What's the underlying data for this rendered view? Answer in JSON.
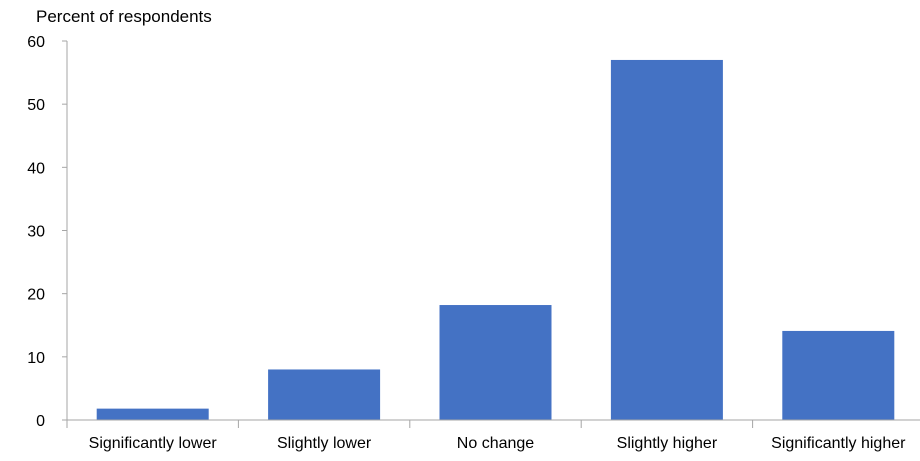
{
  "chart_data": {
    "type": "bar",
    "ylabel": "Percent of respondents",
    "xlabel": "",
    "categories": [
      "Significantly lower",
      "Slightly lower",
      "No change",
      "Slightly higher",
      "Significantly higher"
    ],
    "values": [
      1.8,
      8.0,
      18.2,
      57.0,
      14.1
    ],
    "ylim": [
      0,
      60
    ],
    "yticks": [
      0,
      10,
      20,
      30,
      40,
      50,
      60
    ],
    "grid": false,
    "legend": "none",
    "bar_color": "#4472C4",
    "axis_color": "#A6A6A6"
  }
}
